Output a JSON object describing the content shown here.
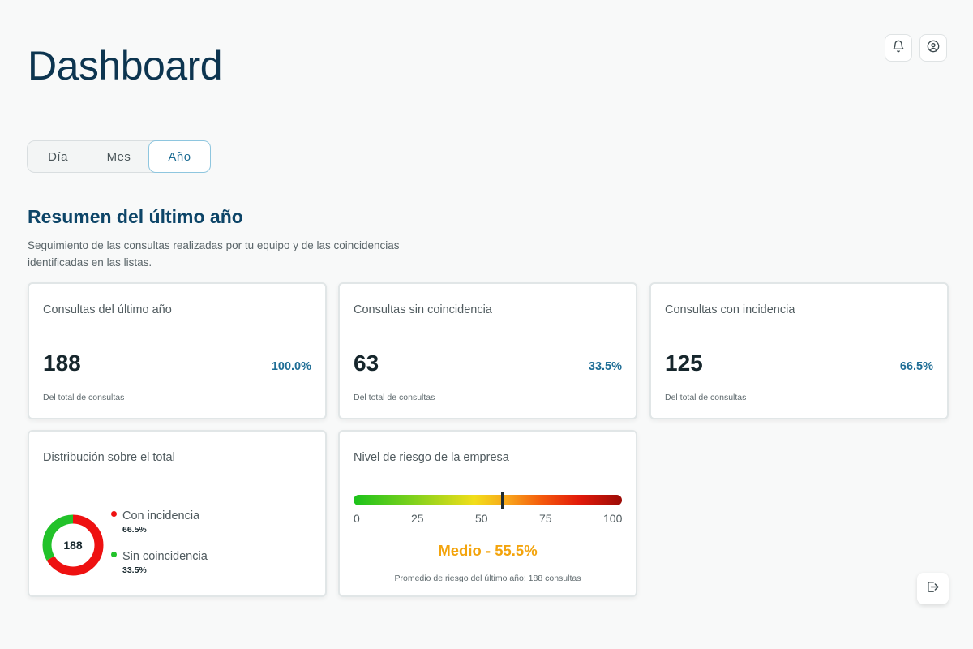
{
  "page": {
    "title": "Dashboard"
  },
  "header": {
    "notifications_icon": "bell-icon",
    "profile_icon": "user-circle-icon"
  },
  "period_tabs": [
    {
      "label": "Día",
      "active": false
    },
    {
      "label": "Mes",
      "active": false
    },
    {
      "label": "Año",
      "active": true
    }
  ],
  "summary": {
    "title": "Resumen del último año",
    "description": "Seguimiento de las consultas realizadas por tu equipo y de las coincidencias identificadas en las listas."
  },
  "kpis": [
    {
      "label": "Consultas del último año",
      "value": "188",
      "percent": "100.0%",
      "note": "Del total de consultas"
    },
    {
      "label": "Consultas sin coincidencia",
      "value": "63",
      "percent": "33.5%",
      "note": "Del total de consultas"
    },
    {
      "label": "Consultas con incidencia",
      "value": "125",
      "percent": "66.5%",
      "note": "Del total de consultas"
    }
  ],
  "distribution": {
    "label": "Distribución sobre el total",
    "total": "188",
    "items": [
      {
        "name": "Con incidencia",
        "percent": "66.5%",
        "fraction": 0.665,
        "color": "#ee1111"
      },
      {
        "name": "Sin coincidencia",
        "percent": "33.5%",
        "fraction": 0.335,
        "color": "#22c22a"
      }
    ]
  },
  "risk": {
    "label": "Nivel de riesgo de la empresa",
    "ticks": [
      "0",
      "25",
      "50",
      "75",
      "100"
    ],
    "value_fraction": 0.555,
    "result": "Medio - 55.5%",
    "note": "Promedio de riesgo del último año: 188 consultas",
    "result_color": "#f3a40d"
  },
  "footer": {
    "logout_icon": "logout-icon"
  }
}
